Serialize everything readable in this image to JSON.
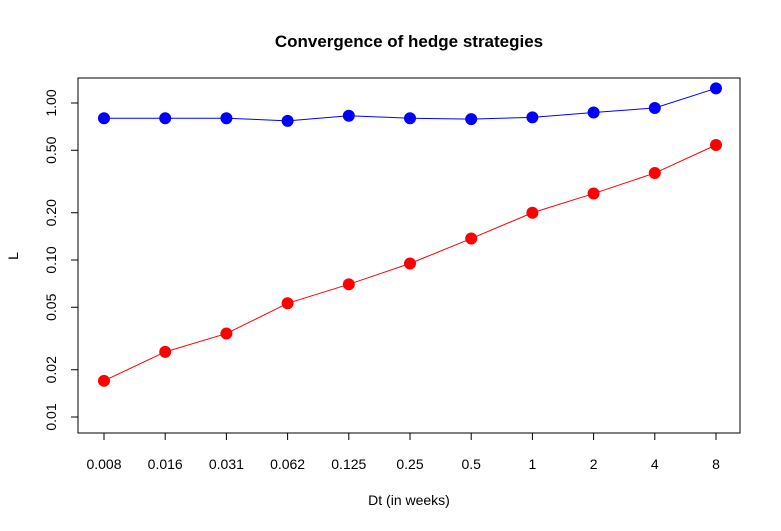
{
  "chart_data": {
    "type": "line",
    "title": "Convergence of hedge strategies",
    "xlabel": "Dt (in weeks)",
    "ylabel": "L",
    "x_scale": "categorical",
    "y_scale": "log",
    "categories": [
      "0.008",
      "0.016",
      "0.031",
      "0.062",
      "0.125",
      "0.25",
      "0.5",
      "1",
      "2",
      "4",
      "8"
    ],
    "y_ticks": [
      0.01,
      0.02,
      0.05,
      0.1,
      0.2,
      0.5,
      1.0
    ],
    "y_tick_labels": [
      "0.01",
      "0.02",
      "0.05",
      "0.10",
      "0.20",
      "0.50",
      "1.00"
    ],
    "ylim": [
      0.0085,
      1.6
    ],
    "grid": false,
    "legend": "none",
    "series": [
      {
        "color": "#0000ff",
        "values": [
          0.8,
          0.8,
          0.8,
          0.77,
          0.83,
          0.8,
          0.79,
          0.81,
          0.87,
          0.93,
          1.24
        ]
      },
      {
        "color": "#ff0000",
        "values": [
          0.017,
          0.026,
          0.034,
          0.053,
          0.07,
          0.095,
          0.137,
          0.2,
          0.265,
          0.358,
          0.54
        ]
      }
    ]
  }
}
